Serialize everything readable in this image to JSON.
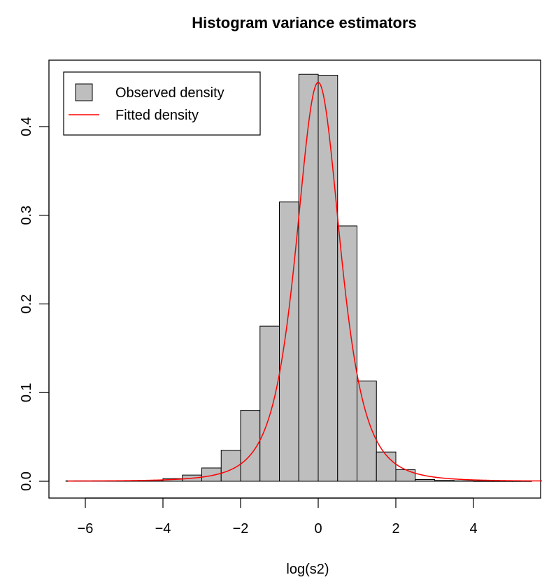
{
  "chart_data": {
    "type": "bar",
    "title": "Histogram variance estimators",
    "xlabel": "log(s2)",
    "ylabel": "",
    "xlim": [
      -6.5,
      5.5
    ],
    "ylim": [
      0,
      0.46
    ],
    "x_ticks": [
      -6,
      -4,
      -2,
      0,
      2,
      4
    ],
    "x_tick_labels": [
      "−6",
      "−4",
      "−2",
      "0",
      "2",
      "4"
    ],
    "y_ticks": [
      0.0,
      0.1,
      0.2,
      0.3,
      0.4
    ],
    "y_tick_labels": [
      "0.0",
      "0.1",
      "0.2",
      "0.3",
      "0.4"
    ],
    "bin_width": 0.5,
    "bin_starts": [
      -6.5,
      -6.0,
      -5.5,
      -5.0,
      -4.5,
      -4.0,
      -3.5,
      -3.0,
      -2.5,
      -2.0,
      -1.5,
      -1.0,
      -0.5,
      0.0,
      0.5,
      1.0,
      1.5,
      2.0,
      2.5,
      3.0,
      3.5,
      4.0,
      4.5,
      5.0
    ],
    "values": [
      0.0005,
      0.0005,
      0.0005,
      0.0005,
      0.001,
      0.003,
      0.007,
      0.015,
      0.035,
      0.08,
      0.175,
      0.315,
      0.459,
      0.458,
      0.288,
      0.113,
      0.033,
      0.013,
      0.002,
      0.001,
      0.0005,
      0.0003,
      0.0003,
      0.0003
    ],
    "fitted_curve": {
      "name": "Fitted density",
      "color": "#ff0000",
      "peak_x": 0.0,
      "peak_y": 0.45
    },
    "bar_fill": "#bebebe",
    "legend": {
      "position": "top-left",
      "entries": [
        {
          "label": "Observed density",
          "kind": "box",
          "color": "#bebebe"
        },
        {
          "label": "Fitted density",
          "kind": "line",
          "color": "#ff0000"
        }
      ]
    },
    "grid": false
  }
}
